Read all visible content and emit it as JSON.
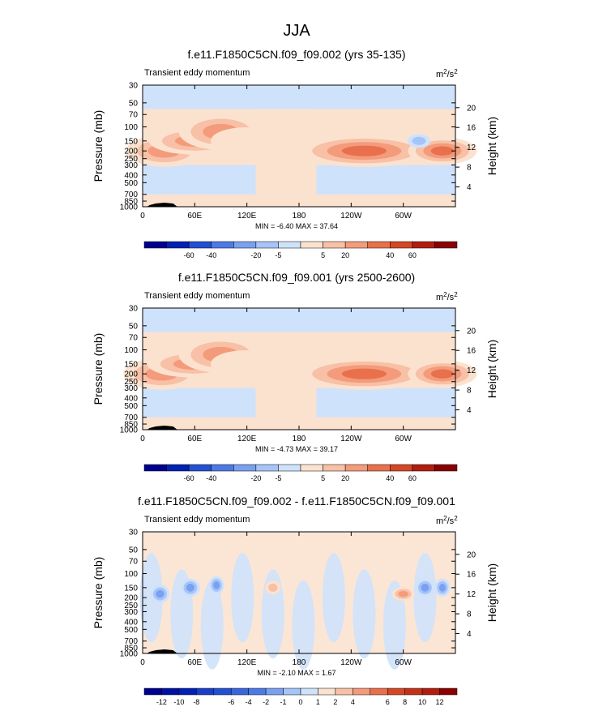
{
  "page": {
    "title": "JJA"
  },
  "chart_data": [
    {
      "type": "contour",
      "title": "f.e11.F1850C5CN.f09_f09.002 (yrs 35-135)",
      "left_label": "Transient eddy momentum",
      "units_base": "m",
      "units_exp1": "2",
      "units_slash": "/s",
      "units_exp2": "2",
      "ylabel": "Pressure (mb)",
      "ylabel_right": "Height (km)",
      "pressure_ticks": [
        30,
        50,
        70,
        100,
        150,
        200,
        250,
        300,
        400,
        500,
        700,
        850,
        1000
      ],
      "height_ticks": [
        20,
        16,
        12,
        8,
        4
      ],
      "x_ticks": [
        "0",
        "60E",
        "120E",
        "180",
        "120W",
        "60W"
      ],
      "min_max": "MIN = -6.40  MAX = 37.64",
      "colorbar_levels": [
        "-60",
        "-40",
        "-20",
        "-5",
        "5",
        "20",
        "40",
        "60"
      ],
      "colorbar_colors": [
        "#00008e",
        "#0021b2",
        "#2450d2",
        "#4c7ae5",
        "#7aa0f0",
        "#a6c4f8",
        "#cfe2fb",
        "#fbe2cf",
        "#f8c0a6",
        "#f39b7a",
        "#e8704c",
        "#d44826",
        "#b11e0f",
        "#8b0000"
      ],
      "features": [
        {
          "lon": 25,
          "p": 200,
          "dlon": 20,
          "h": 0.7,
          "level": 20
        },
        {
          "lon": 60,
          "p": 150,
          "dlon": 24,
          "h": 0.6,
          "level": 20
        },
        {
          "lon": 90,
          "p": 115,
          "dlon": 22,
          "h": 0.8,
          "level": 20
        },
        {
          "lon": 118,
          "p": 150,
          "dlon": 18,
          "h": 0.6,
          "level": 10
        },
        {
          "lon": 255,
          "p": 200,
          "dlon": 35,
          "h": 0.7,
          "level": 30
        },
        {
          "lon": 345,
          "p": 200,
          "dlon": 18,
          "h": 0.6,
          "level": 30
        },
        {
          "lon": 318,
          "p": 150,
          "dlon": 6,
          "h": 0.3,
          "level": -5
        }
      ]
    },
    {
      "type": "contour",
      "title": "f.e11.F1850C5CN.f09_f09.001 (yrs 2500-2600)",
      "left_label": "Transient eddy momentum",
      "units_base": "m",
      "units_exp1": "2",
      "units_slash": "/s",
      "units_exp2": "2",
      "ylabel": "Pressure (mb)",
      "ylabel_right": "Height (km)",
      "pressure_ticks": [
        30,
        50,
        70,
        100,
        150,
        200,
        250,
        300,
        400,
        500,
        700,
        850,
        1000
      ],
      "height_ticks": [
        20,
        16,
        12,
        8,
        4
      ],
      "x_ticks": [
        "0",
        "60E",
        "120E",
        "180",
        "120W",
        "60W"
      ],
      "min_max": "MIN = -4.73  MAX = 39.17",
      "colorbar_levels": [
        "-60",
        "-40",
        "-20",
        "-5",
        "5",
        "20",
        "40",
        "60"
      ],
      "colorbar_colors": [
        "#00008e",
        "#0021b2",
        "#2450d2",
        "#4c7ae5",
        "#7aa0f0",
        "#a6c4f8",
        "#cfe2fb",
        "#fbe2cf",
        "#f8c0a6",
        "#f39b7a",
        "#e8704c",
        "#d44826",
        "#b11e0f",
        "#8b0000"
      ],
      "features": [
        {
          "lon": 22,
          "p": 200,
          "dlon": 20,
          "h": 0.7,
          "level": 20
        },
        {
          "lon": 58,
          "p": 150,
          "dlon": 24,
          "h": 0.6,
          "level": 20
        },
        {
          "lon": 90,
          "p": 115,
          "dlon": 22,
          "h": 0.8,
          "level": 20
        },
        {
          "lon": 118,
          "p": 150,
          "dlon": 18,
          "h": 0.6,
          "level": 10
        },
        {
          "lon": 255,
          "p": 200,
          "dlon": 35,
          "h": 0.7,
          "level": 30
        },
        {
          "lon": 345,
          "p": 200,
          "dlon": 18,
          "h": 0.6,
          "level": 30
        }
      ]
    },
    {
      "type": "contour",
      "title": "f.e11.F1850C5CN.f09_f09.002 - f.e11.F1850C5CN.f09_f09.001",
      "left_label": "Transient eddy momentum",
      "units_base": "m",
      "units_exp1": "2",
      "units_slash": "/s",
      "units_exp2": "2",
      "ylabel": "Pressure (mb)",
      "ylabel_right": "Height (km)",
      "pressure_ticks": [
        30,
        50,
        70,
        100,
        150,
        200,
        250,
        300,
        400,
        500,
        700,
        850,
        1000
      ],
      "height_ticks": [
        20,
        16,
        12,
        8,
        4
      ],
      "x_ticks": [
        "0",
        "60E",
        "120E",
        "180",
        "120W",
        "60W"
      ],
      "min_max": "MIN = -2.10  MAX = 1.67",
      "colorbar_levels": [
        "-12",
        "-10",
        "-8",
        "-6",
        "-4",
        "-2",
        "-1",
        "0",
        "1",
        "2",
        "4",
        "6",
        "8",
        "10",
        "12"
      ],
      "colorbar_colors": [
        "#00008e",
        "#0010a0",
        "#0021b2",
        "#1a3ec8",
        "#2450d2",
        "#3866dc",
        "#4c7ae5",
        "#7aa0f0",
        "#a6c4f8",
        "#cfe2fb",
        "#fbe2cf",
        "#f8c0a6",
        "#f39b7a",
        "#e8704c",
        "#d44826",
        "#c2321a",
        "#b11e0f",
        "#8b0000"
      ],
      "features": [
        {
          "lon": 20,
          "p": 180,
          "dlon": 5,
          "h": 0.4,
          "level": -1.5
        },
        {
          "lon": 55,
          "p": 150,
          "dlon": 5,
          "h": 0.4,
          "level": -1.5
        },
        {
          "lon": 85,
          "p": 140,
          "dlon": 4,
          "h": 0.4,
          "level": -1.5
        },
        {
          "lon": 325,
          "p": 150,
          "dlon": 5,
          "h": 0.4,
          "level": -1.5
        },
        {
          "lon": 345,
          "p": 150,
          "dlon": 4,
          "h": 0.4,
          "level": -1.5
        },
        {
          "lon": 300,
          "p": 180,
          "dlon": 6,
          "h": 0.3,
          "level": 1.5
        },
        {
          "lon": 150,
          "p": 150,
          "dlon": 4,
          "h": 0.3,
          "level": 1.2
        }
      ]
    }
  ]
}
